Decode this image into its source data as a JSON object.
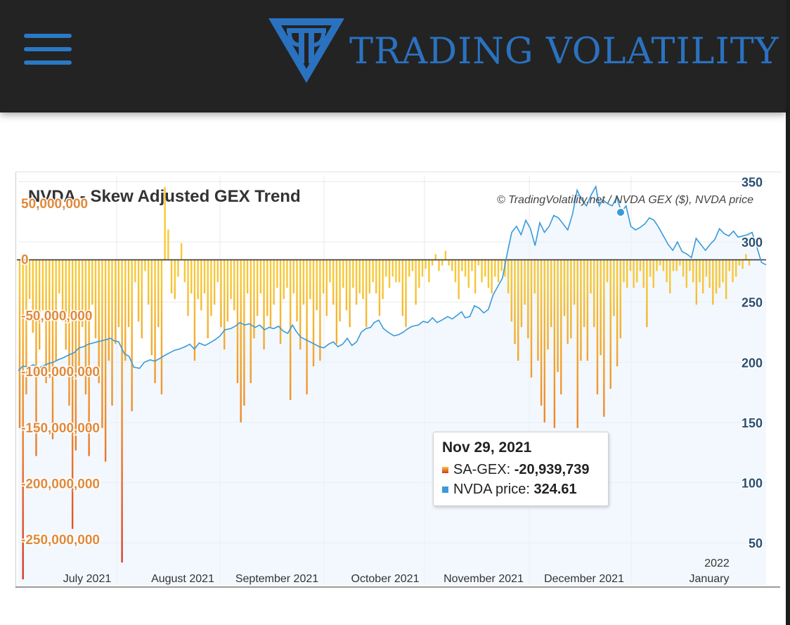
{
  "header": {
    "brand": "TRADING VOLATILITY"
  },
  "colors": {
    "header_bg": "#232323",
    "brand_blue": "#2a72c0",
    "gex_left_axis": "#e08a3c",
    "price_axis": "#2b4f72",
    "price_line": "#3a9ad9",
    "bar_bottom": "#d6322a",
    "bar_top": "#f7c836"
  },
  "chart_data": {
    "type": "bar+line",
    "title": "NVDA - Skew Adjusted GEX Trend",
    "credits": "© TradingVolatility.net / NVDA GEX ($), NVDA price",
    "x_labels": [
      "July 2021",
      "August 2021",
      "September 2021",
      "October 2021",
      "November 2021",
      "December 2021",
      "January"
    ],
    "x_year_label": "2022",
    "left_axis": {
      "ticks": [
        "50,000,000",
        "0",
        "-50,000,000",
        "-100,000,000",
        "-150,000,000",
        "-200,000,000",
        "-250,000,000"
      ],
      "ylim": [
        -290000000,
        75000000
      ]
    },
    "right_axis": {
      "ticks": [
        "350",
        "300",
        "250",
        "200",
        "150",
        "100",
        "50"
      ],
      "ylim": [
        15,
        355
      ]
    },
    "series": [
      {
        "name": "SA-GEX",
        "type": "bar",
        "values": [
          -150000000,
          -285000000,
          -120000000,
          -35000000,
          -65000000,
          -175000000,
          -80000000,
          -45000000,
          -110000000,
          -100000000,
          -160000000,
          -90000000,
          -30000000,
          -55000000,
          -80000000,
          -130000000,
          -240000000,
          -170000000,
          -100000000,
          -60000000,
          -120000000,
          -175000000,
          -40000000,
          -70000000,
          -110000000,
          -150000000,
          -180000000,
          -90000000,
          -130000000,
          -75000000,
          -60000000,
          -270000000,
          -90000000,
          -60000000,
          -135000000,
          -20000000,
          -55000000,
          -70000000,
          -10000000,
          -40000000,
          -85000000,
          -110000000,
          -60000000,
          -120000000,
          65000000,
          27000000,
          -30000000,
          -35000000,
          -15000000,
          15000000,
          -20000000,
          -50000000,
          -30000000,
          -90000000,
          -35000000,
          -45000000,
          -30000000,
          -70000000,
          -50000000,
          -40000000,
          -20000000,
          -60000000,
          -80000000,
          -55000000,
          -35000000,
          -45000000,
          -110000000,
          -145000000,
          -130000000,
          -30000000,
          -110000000,
          -70000000,
          -50000000,
          -30000000,
          -80000000,
          -50000000,
          -60000000,
          -40000000,
          -25000000,
          -75000000,
          -35000000,
          -25000000,
          -125000000,
          -30000000,
          -55000000,
          -80000000,
          -40000000,
          -120000000,
          -35000000,
          -95000000,
          -45000000,
          -90000000,
          -30000000,
          -50000000,
          -20000000,
          -40000000,
          -75000000,
          -55000000,
          -25000000,
          -45000000,
          -60000000,
          -25000000,
          -40000000,
          -30000000,
          -35000000,
          -60000000,
          -30000000,
          -20000000,
          -30000000,
          -50000000,
          -35000000,
          -15000000,
          -25000000,
          -15000000,
          -20000000,
          -20000000,
          -50000000,
          -60000000,
          -15000000,
          -10000000,
          -40000000,
          -25000000,
          -15000000,
          -8000000,
          -20000000,
          -5000000,
          5000000,
          -10000000,
          -5000000,
          8000000,
          -5000000,
          -10000000,
          -20000000,
          -35000000,
          -10000000,
          -15000000,
          -25000000,
          -10000000,
          -30000000,
          -5000000,
          -20000000,
          -15000000,
          -25000000,
          -30000000,
          -15000000,
          -20000000,
          -10000000,
          -15000000,
          -30000000,
          -55000000,
          -75000000,
          -90000000,
          -60000000,
          -40000000,
          -70000000,
          -105000000,
          -30000000,
          -90000000,
          -130000000,
          -145000000,
          -80000000,
          -60000000,
          -150000000,
          -100000000,
          -120000000,
          -50000000,
          -75000000,
          -70000000,
          -40000000,
          -150000000,
          -90000000,
          -60000000,
          -90000000,
          -30000000,
          -60000000,
          -120000000,
          -85000000,
          -140000000,
          -20000000,
          -115000000,
          -50000000,
          -95000000,
          -70000000,
          -20000000,
          -25000000,
          -10000000,
          -25000000,
          -20000000,
          -10000000,
          -25000000,
          -60000000,
          -15000000,
          -25000000,
          -10000000,
          -5000000,
          -10000000,
          -20000000,
          -30000000,
          -10000000,
          -10000000,
          -5000000,
          -15000000,
          -25000000,
          -10000000,
          -20000000,
          -40000000,
          -20000000,
          -30000000,
          -15000000,
          -25000000,
          -40000000,
          -30000000,
          -25000000,
          -20000000,
          -35000000,
          -10000000,
          -20000000,
          -15000000,
          -5000000,
          -8000000,
          5000000,
          -5000000
        ]
      },
      {
        "name": "NVDA price",
        "type": "line",
        "points": [
          [
            0,
            193
          ],
          [
            4,
            197
          ],
          [
            8,
            196
          ],
          [
            13,
            198
          ],
          [
            17,
            195
          ],
          [
            21,
            197
          ],
          [
            26,
            199
          ],
          [
            30,
            200
          ],
          [
            34,
            202
          ],
          [
            39,
            204
          ],
          [
            43,
            206
          ],
          [
            48,
            208
          ],
          [
            52,
            212
          ],
          [
            56,
            213
          ],
          [
            60,
            215
          ],
          [
            64,
            216
          ],
          [
            68,
            217
          ],
          [
            72,
            218
          ],
          [
            76,
            219
          ],
          [
            79,
            220
          ],
          [
            82,
            218
          ],
          [
            86,
            217
          ],
          [
            91,
            207
          ],
          [
            95,
            205
          ],
          [
            99,
            196
          ],
          [
            104,
            195
          ],
          [
            108,
            200
          ],
          [
            113,
            202
          ],
          [
            117,
            201
          ],
          [
            121,
            203
          ],
          [
            126,
            206
          ],
          [
            130,
            208
          ],
          [
            134,
            210
          ],
          [
            138,
            211
          ],
          [
            143,
            213
          ],
          [
            147,
            215
          ],
          [
            151,
            211
          ],
          [
            155,
            216
          ],
          [
            160,
            214
          ],
          [
            164,
            216
          ],
          [
            169,
            219
          ],
          [
            173,
            222
          ],
          [
            177,
            227
          ],
          [
            182,
            228
          ],
          [
            186,
            230
          ],
          [
            190,
            233
          ],
          [
            194,
            231
          ],
          [
            198,
            232
          ],
          [
            203,
            229
          ],
          [
            207,
            231
          ],
          [
            211,
            227
          ],
          [
            215,
            229
          ],
          [
            219,
            228
          ],
          [
            223,
            230
          ],
          [
            227,
            226
          ],
          [
            231,
            224
          ],
          [
            235,
            231
          ],
          [
            238,
            226
          ],
          [
            242,
            221
          ],
          [
            246,
            219
          ],
          [
            250,
            217
          ],
          [
            254,
            215
          ],
          [
            258,
            213
          ],
          [
            262,
            212
          ],
          [
            266,
            215
          ],
          [
            270,
            217
          ],
          [
            274,
            213
          ],
          [
            278,
            215
          ],
          [
            282,
            220
          ],
          [
            286,
            214
          ],
          [
            290,
            217
          ],
          [
            294,
            225
          ],
          [
            298,
            228
          ],
          [
            302,
            229
          ],
          [
            305,
            233
          ],
          [
            309,
            235
          ],
          [
            313,
            228
          ],
          [
            317,
            225
          ],
          [
            322,
            222
          ],
          [
            326,
            223
          ],
          [
            330,
            225
          ],
          [
            334,
            228
          ],
          [
            338,
            230
          ],
          [
            343,
            231
          ],
          [
            347,
            234
          ],
          [
            351,
            233
          ],
          [
            355,
            237
          ],
          [
            359,
            233
          ],
          [
            363,
            235
          ],
          [
            368,
            238
          ],
          [
            372,
            236
          ],
          [
            376,
            239
          ],
          [
            380,
            242
          ],
          [
            383,
            237
          ],
          [
            387,
            238
          ],
          [
            391,
            247
          ],
          [
            395,
            245
          ],
          [
            399,
            241
          ],
          [
            403,
            244
          ],
          [
            407,
            256
          ],
          [
            411,
            263
          ],
          [
            415,
            270
          ],
          [
            419,
            290
          ],
          [
            423,
            308
          ],
          [
            427,
            313
          ],
          [
            431,
            306
          ],
          [
            435,
            318
          ],
          [
            439,
            311
          ],
          [
            443,
            297
          ],
          [
            447,
            316
          ],
          [
            451,
            308
          ],
          [
            455,
            313
          ],
          [
            459,
            322
          ],
          [
            463,
            320
          ],
          [
            467,
            315
          ],
          [
            471,
            310
          ],
          [
            475,
            323
          ],
          [
            479,
            343
          ],
          [
            483,
            335
          ],
          [
            487,
            330
          ],
          [
            491,
            339
          ],
          [
            495,
            346
          ],
          [
            498,
            330
          ],
          [
            501,
            335
          ],
          [
            505,
            332
          ],
          [
            509,
            330
          ],
          [
            513,
            337
          ],
          [
            517,
            325
          ],
          [
            521,
            330
          ],
          [
            525,
            313
          ],
          [
            529,
            310
          ],
          [
            533,
            312
          ],
          [
            537,
            315
          ],
          [
            541,
            320
          ],
          [
            545,
            318
          ],
          [
            549,
            312
          ],
          [
            553,
            305
          ],
          [
            557,
            298
          ],
          [
            561,
            293
          ],
          [
            565,
            300
          ],
          [
            569,
            292
          ],
          [
            573,
            290
          ],
          [
            577,
            287
          ],
          [
            581,
            303
          ],
          [
            585,
            298
          ],
          [
            589,
            293
          ],
          [
            593,
            298
          ],
          [
            597,
            302
          ],
          [
            601,
            311
          ],
          [
            605,
            307
          ],
          [
            609,
            305
          ],
          [
            613,
            309
          ],
          [
            617,
            304
          ],
          [
            621,
            305
          ],
          [
            625,
            306
          ],
          [
            629,
            308
          ],
          [
            633,
            296
          ],
          [
            637,
            283
          ],
          [
            641,
            281
          ]
        ]
      }
    ],
    "highlight": {
      "date": "Nov 29, 2021",
      "sa_gex_label": "SA-GEX:",
      "sa_gex_value": "-20,939,739",
      "price_label": "NVDA price:",
      "price_value": "324.61"
    }
  }
}
